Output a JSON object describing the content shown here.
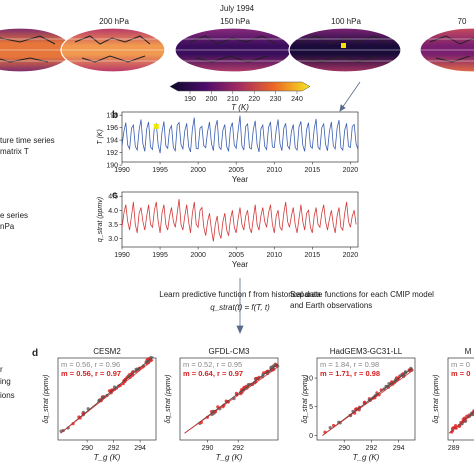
{
  "figure": {
    "title": "July 1994",
    "maps": [
      {
        "label": ""
      },
      {
        "label": "200 hPa"
      },
      {
        "label": "150 hPa"
      },
      {
        "label": "100 hPa"
      },
      {
        "label": "70"
      }
    ],
    "colorbar": {
      "ticks": [
        "190",
        "200",
        "210",
        "220",
        "230",
        "240"
      ],
      "label": "T (K)"
    },
    "left_texts": [
      "ture time series",
      "matrix T",
      "e series",
      "nPa",
      "r",
      "ing",
      "ions"
    ],
    "learn_text": "Learn predictive function f from historical data",
    "learn_eq": "q_strat(t) = f(T, t)",
    "separate_text_1": "Separate functions for each CMIP model",
    "separate_text_2": "and Earth observations",
    "panel_d": "d"
  },
  "chart_data": [
    {
      "type": "line",
      "panel": "b",
      "xlabel": "Year",
      "ylabel": "T (K)",
      "xlim": [
        1990,
        2021
      ],
      "ylim": [
        190.5,
        198.5
      ],
      "xticks": [
        "1990",
        "1995",
        "2000",
        "2005",
        "2010",
        "2015",
        "2020"
      ],
      "yticks": [
        "190",
        "192",
        "194",
        "196",
        "198"
      ],
      "color": "#3a5fb0",
      "highlight": {
        "x": 1994.5,
        "y": 196.2,
        "color": "#f2e600"
      },
      "series": [
        {
          "x_start": 1990,
          "step": 0.25,
          "values": [
            193.1,
            195.4,
            196.8,
            193.2,
            192.6,
            195.9,
            196.4,
            193.0,
            192.4,
            195.6,
            197.3,
            193.4,
            192.2,
            195.8,
            196.9,
            192.9,
            192.5,
            196.1,
            196.6,
            193.2,
            191.9,
            195.3,
            197.0,
            193.1,
            192.7,
            195.7,
            196.3,
            192.8,
            192.3,
            196.4,
            196.8,
            193.3,
            192.6,
            195.5,
            196.7,
            193.0,
            192.1,
            195.8,
            197.6,
            192.7,
            192.6,
            195.9,
            196.2,
            193.1,
            192.8,
            195.4,
            196.9,
            193.4,
            192.3,
            196.0,
            197.2,
            192.9,
            192.5,
            195.6,
            196.5,
            193.0,
            192.2,
            195.9,
            196.8,
            193.2,
            192.7,
            195.5,
            197.9,
            193.1,
            192.4,
            196.2,
            196.6,
            192.8,
            192.6,
            195.7,
            197.1,
            193.3,
            192.1,
            195.8,
            196.4,
            193.0,
            192.5,
            196.0,
            196.9,
            192.9,
            192.8,
            195.6,
            197.3,
            193.4,
            192.3,
            195.9,
            196.7,
            193.1,
            192.6,
            195.4,
            196.5,
            192.8,
            192.4,
            196.1,
            197.0,
            193.2,
            192.2,
            195.7,
            196.8,
            193.0,
            192.7,
            195.8,
            197.4,
            192.9,
            192.5,
            196.0,
            196.6,
            193.3,
            192.3,
            195.5,
            196.9,
            193.1,
            192.6,
            195.9,
            197.2,
            192.8,
            192.4,
            195.6,
            196.7,
            193.0,
            192.8,
            196.2,
            196.5,
            193.4,
            192.5,
            195.7,
            197.0,
            193.1
          ]
        }
      ]
    },
    {
      "type": "line",
      "panel": "c",
      "xlabel": "Year",
      "ylabel": "q_strat (ppmv)",
      "xlim": [
        1990,
        2021
      ],
      "ylim": [
        2.7,
        4.65
      ],
      "xticks": [
        "1990",
        "1995",
        "2000",
        "2005",
        "2010",
        "2015",
        "2020"
      ],
      "yticks": [
        "3.0",
        "3.5",
        "4.0",
        "4.5"
      ],
      "color": "#d23a3a",
      "series": [
        {
          "x_start": 1990,
          "step": 0.25,
          "values": [
            3.4,
            3.9,
            4.2,
            3.6,
            3.3,
            3.8,
            4.3,
            3.5,
            3.2,
            3.9,
            4.1,
            3.6,
            3.3,
            3.8,
            4.2,
            3.5,
            3.4,
            4.0,
            4.3,
            3.6,
            3.2,
            3.9,
            4.2,
            3.5,
            3.3,
            3.8,
            4.1,
            3.6,
            3.4,
            3.9,
            4.4,
            3.5,
            3.3,
            3.8,
            4.2,
            3.6,
            3.2,
            3.9,
            4.3,
            3.5,
            3.4,
            4.0,
            4.1,
            3.4,
            3.1,
            3.6,
            3.9,
            3.3,
            2.9,
            3.5,
            3.8,
            3.2,
            3.0,
            3.6,
            3.9,
            3.3,
            3.1,
            3.7,
            4.0,
            3.4,
            3.2,
            3.7,
            4.1,
            3.5,
            3.3,
            3.8,
            4.0,
            3.4,
            3.2,
            3.7,
            4.2,
            3.5,
            3.3,
            3.8,
            4.1,
            3.6,
            3.4,
            3.9,
            4.2,
            3.5,
            3.2,
            3.8,
            4.0,
            3.4,
            3.3,
            3.9,
            4.3,
            3.6,
            3.4,
            3.8,
            4.1,
            3.5,
            3.2,
            3.7,
            4.2,
            3.6,
            3.3,
            3.9,
            4.0,
            3.4,
            3.2,
            3.8,
            4.1,
            3.5,
            3.4,
            3.9,
            4.2,
            3.6,
            3.3,
            3.7,
            4.0,
            3.5,
            3.2,
            3.8,
            4.1,
            3.4,
            3.3,
            3.9,
            4.3,
            3.6,
            3.4,
            3.8,
            4.0,
            3.5
          ]
        }
      ]
    },
    {
      "type": "scatter",
      "panel": "d1",
      "title": "CESM2",
      "xlabel": "T_g (K)",
      "ylabel": "δq_strat (ppmv)",
      "xlim": [
        287.8,
        295.2
      ],
      "ylim": [
        -0.3,
        3.9
      ],
      "xticks": [
        "290",
        "292",
        "294"
      ],
      "stats_grey": "m = 0.56, r = 0.96",
      "stats_red": "m = 0.56, r = 0.97",
      "slope": 0.56,
      "x0": 288.0,
      "intercept": 0.05
    },
    {
      "type": "scatter",
      "panel": "d2",
      "title": "GFDL-CM3",
      "xlabel": "T_g (K)",
      "ylabel": "δq_strat (ppmv)",
      "xlim": [
        288.2,
        294.6
      ],
      "ylim": [
        -0.3,
        3.9
      ],
      "xticks": [
        "290",
        "292"
      ],
      "stats_grey": "m = 0.52, r = 0.95",
      "stats_red": "m = 0.64, r = 0.97",
      "slope": 0.58,
      "x0": 288.5,
      "intercept": 0.05
    },
    {
      "type": "scatter",
      "panel": "d3",
      "title": "HadGEM3-GC31-LL",
      "xlabel": "T_g (K)",
      "ylabel": "δq_strat (ppmv)",
      "xlim": [
        288.0,
        295.2
      ],
      "ylim": [
        -0.8,
        13.5
      ],
      "xticks": [
        "290",
        "292",
        "294"
      ],
      "yticks": [
        "0",
        "5",
        "10"
      ],
      "stats_grey": "m = 1.84, r = 0.98",
      "stats_red": "m = 1.71, r = 0.98",
      "slope": 1.78,
      "x0": 288.4,
      "intercept": 0.0
    },
    {
      "type": "scatter",
      "panel": "d4",
      "title": "M",
      "xlabel": "",
      "ylabel": "δq_strat (ppmv)",
      "xlim": [
        288.5,
        292
      ],
      "ylim": [
        -0.3,
        3.9
      ],
      "xticks": [
        "289"
      ],
      "stats_grey": "m = 0",
      "stats_red": "m = 0",
      "slope": 0.5,
      "x0": 288.6,
      "intercept": 0.05
    }
  ]
}
